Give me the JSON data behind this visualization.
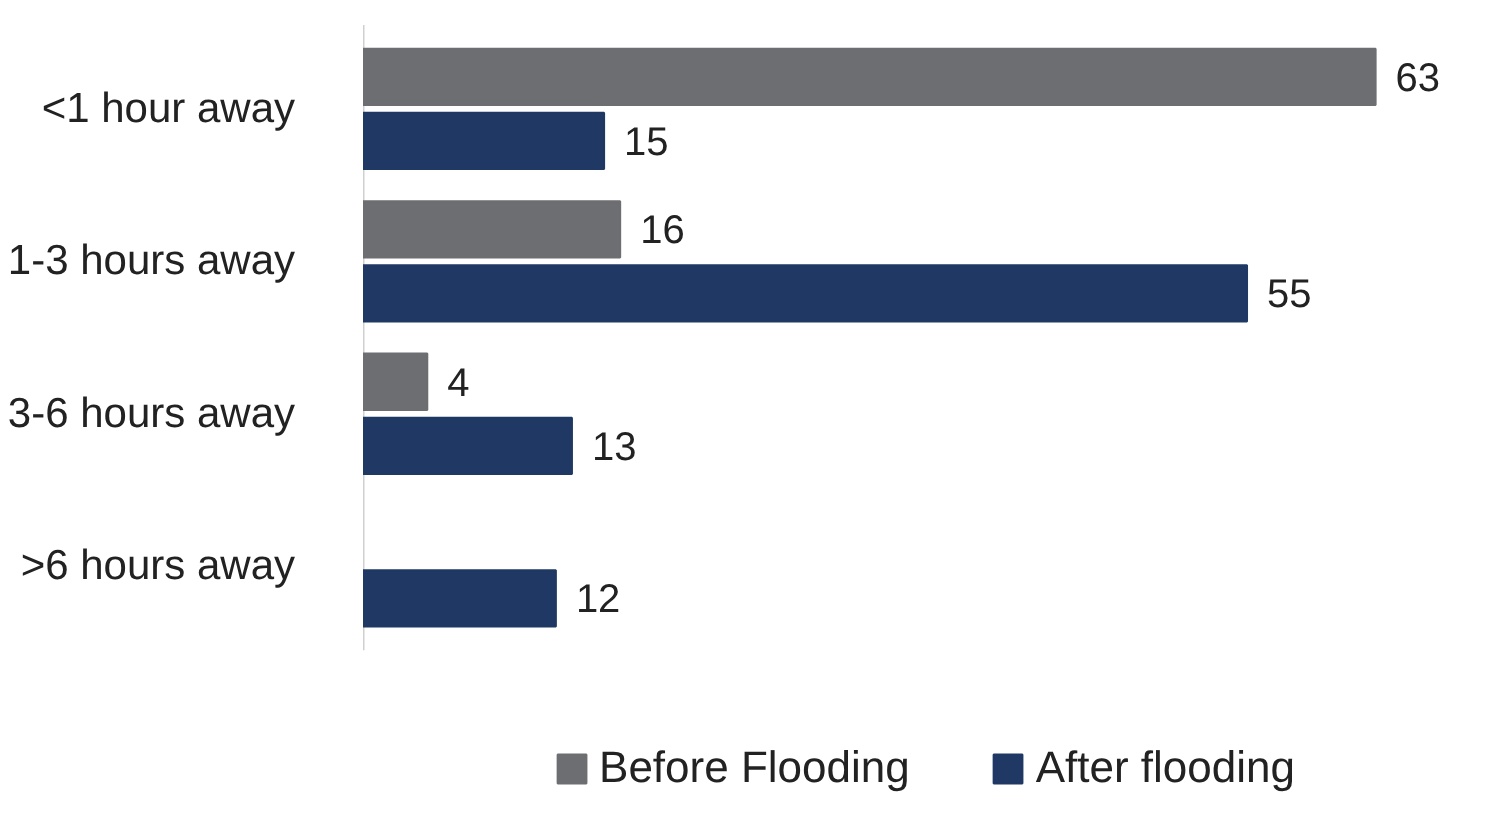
{
  "chart_data": {
    "type": "bar",
    "orientation": "horizontal",
    "categories": [
      "<1 hour away",
      "1-3 hours away",
      "3-6 hours away",
      ">6 hours away"
    ],
    "series": [
      {
        "name": "Before Flooding",
        "color": "#6d6e71",
        "values": [
          63,
          16,
          4,
          null
        ]
      },
      {
        "name": "After flooding",
        "color": "#1f3864",
        "values": [
          15,
          55,
          13,
          12
        ]
      }
    ],
    "data_labels": true,
    "legend": "bottom",
    "grid": false
  }
}
